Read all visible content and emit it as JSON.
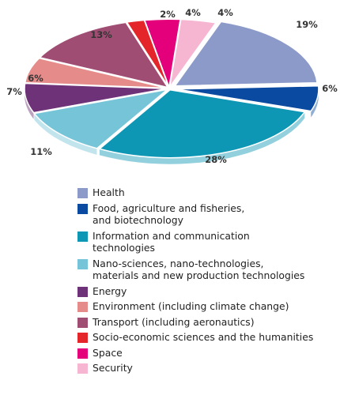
{
  "chart_data": {
    "type": "pie",
    "series": [
      {
        "label": "Health",
        "value": 19,
        "pct_label": "19%",
        "color": "#8B9AC8"
      },
      {
        "label": "Food, agriculture and fisheries,\nand biotechnology",
        "value": 6,
        "pct_label": "6%",
        "color": "#0A4AA0"
      },
      {
        "label": "Information and communication\ntechnologies",
        "value": 28,
        "pct_label": "28%",
        "color": "#0E97B4"
      },
      {
        "label": "Nano-sciences, nano-technologies,\nmaterials and new production technologies",
        "value": 11,
        "pct_label": "11%",
        "color": "#76C4D8"
      },
      {
        "label": "Energy",
        "value": 7,
        "pct_label": "7%",
        "color": "#6D3277"
      },
      {
        "label": "Environment (including climate change)",
        "value": 6,
        "pct_label": "6%",
        "color": "#E58C8A"
      },
      {
        "label": "Transport (including aeronautics)",
        "value": 13,
        "pct_label": "13%",
        "color": "#A04D74"
      },
      {
        "label": "Socio-economic sciences and the humanities",
        "value": 2,
        "pct_label": "2%",
        "color": "#E4252A"
      },
      {
        "label": "Space",
        "value": 4,
        "pct_label": "4%",
        "color": "#E4007A"
      },
      {
        "label": "Security",
        "value": 4,
        "pct_label": "4%",
        "color": "#F6B5D1"
      }
    ],
    "legend_position": "below"
  }
}
